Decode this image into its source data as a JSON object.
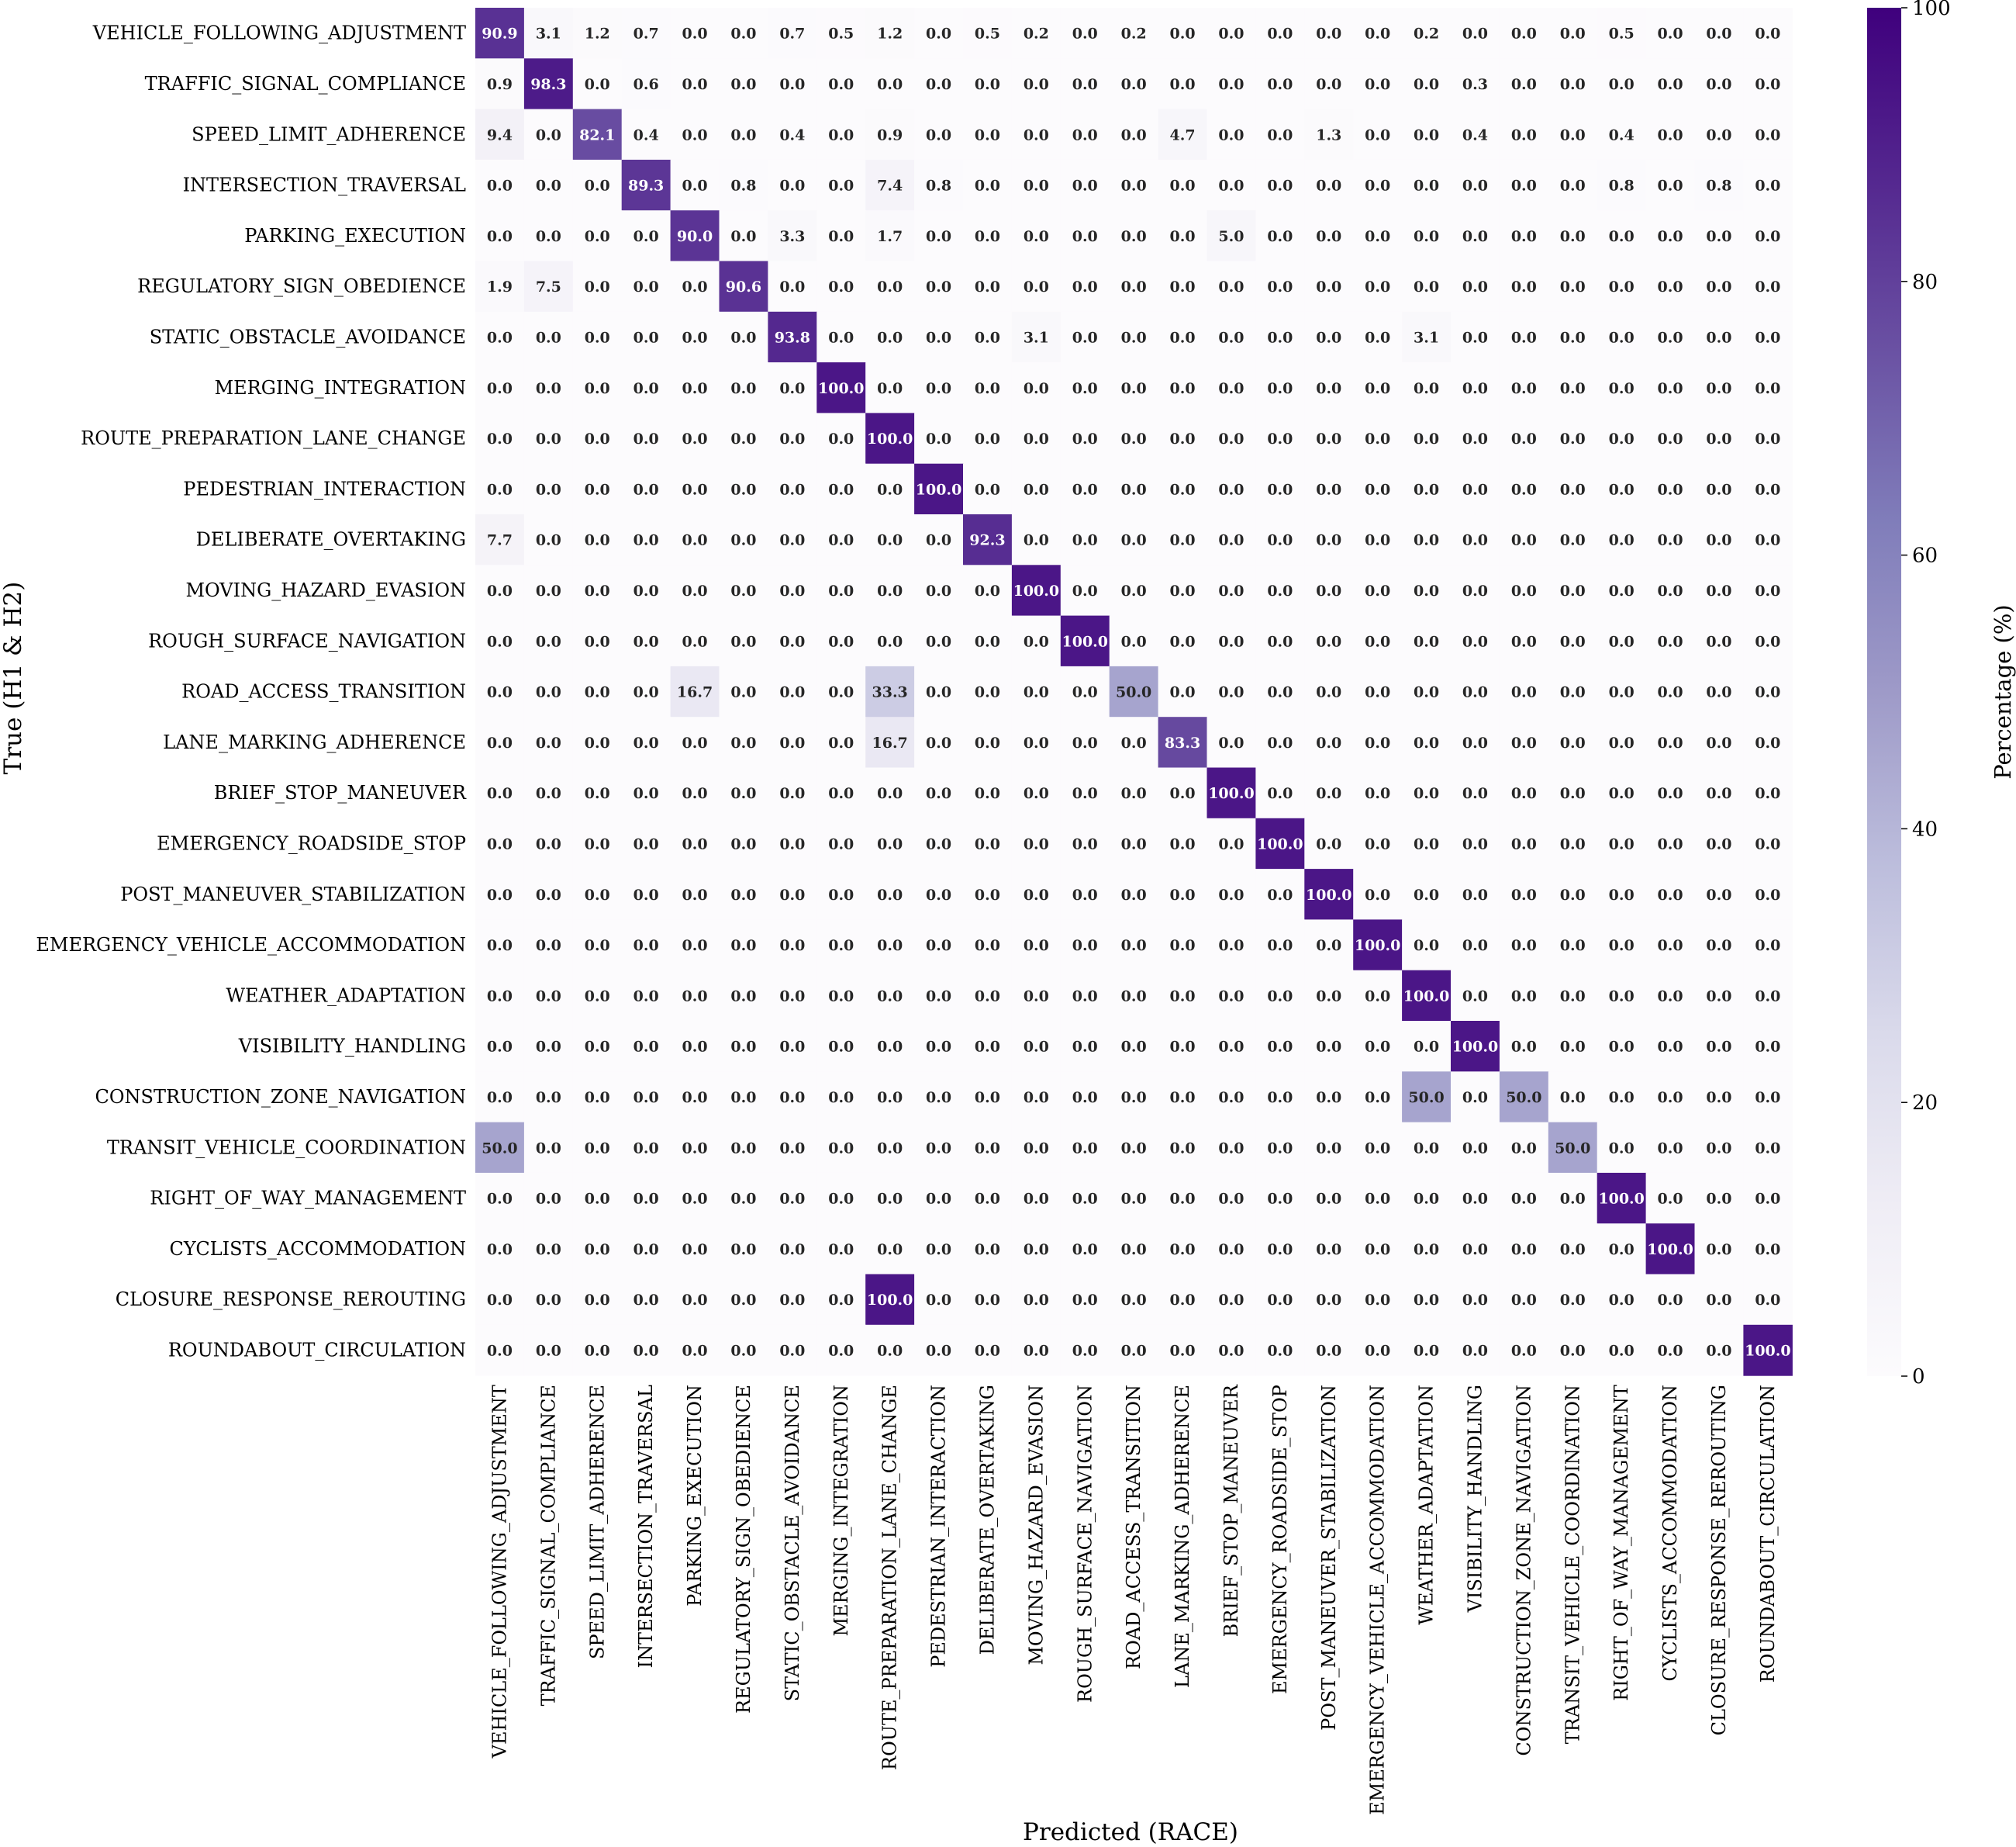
{
  "chart_data": {
    "type": "heatmap",
    "xlabel": "Predicted (RACE)",
    "ylabel": "True (H1 & H2)",
    "colorbar": {
      "label": "Percentage (%)",
      "range": [
        0,
        100
      ],
      "ticks": [
        "0",
        "20",
        "40",
        "60",
        "80",
        "100"
      ],
      "colors": [
        "#fcfbfd",
        "#bcbddc",
        "#54278f"
      ]
    },
    "categories": [
      "VEHICLE_FOLLOWING_ADJUSTMENT",
      "TRAFFIC_SIGNAL_COMPLIANCE",
      "SPEED_LIMIT_ADHERENCE",
      "INTERSECTION_TRAVERSAL",
      "PARKING_EXECUTION",
      "REGULATORY_SIGN_OBEDIENCE",
      "STATIC_OBSTACLE_AVOIDANCE",
      "MERGING_INTEGRATION",
      "ROUTE_PREPARATION_LANE_CHANGE",
      "PEDESTRIAN_INTERACTION",
      "DELIBERATE_OVERTAKING",
      "MOVING_HAZARD_EVASION",
      "ROUGH_SURFACE_NAVIGATION",
      "ROAD_ACCESS_TRANSITION",
      "LANE_MARKING_ADHERENCE",
      "BRIEF_STOP_MANEUVER",
      "EMERGENCY_ROADSIDE_STOP",
      "POST_MANEUVER_STABILIZATION",
      "EMERGENCY_VEHICLE_ACCOMMODATION",
      "WEATHER_ADAPTATION",
      "VISIBILITY_HANDLING",
      "CONSTRUCTION_ZONE_NAVIGATION",
      "TRANSIT_VEHICLE_COORDINATION",
      "RIGHT_OF_WAY_MANAGEMENT",
      "CYCLISTS_ACCOMMODATION",
      "CLOSURE_RESPONSE_REROUTING",
      "ROUNDABOUT_CIRCULATION"
    ],
    "values": [
      [
        90.9,
        3.1,
        1.2,
        0.7,
        0.0,
        0.0,
        0.7,
        0.5,
        1.2,
        0.0,
        0.5,
        0.2,
        0.0,
        0.2,
        0.0,
        0.0,
        0.0,
        0.0,
        0.0,
        0.2,
        0.0,
        0.0,
        0.0,
        0.5,
        0.0,
        0.0,
        0.0
      ],
      [
        0.9,
        98.3,
        0.0,
        0.6,
        0.0,
        0.0,
        0.0,
        0.0,
        0.0,
        0.0,
        0.0,
        0.0,
        0.0,
        0.0,
        0.0,
        0.0,
        0.0,
        0.0,
        0.0,
        0.0,
        0.3,
        0.0,
        0.0,
        0.0,
        0.0,
        0.0,
        0.0
      ],
      [
        9.4,
        0.0,
        82.1,
        0.4,
        0.0,
        0.0,
        0.4,
        0.0,
        0.9,
        0.0,
        0.0,
        0.0,
        0.0,
        0.0,
        4.7,
        0.0,
        0.0,
        1.3,
        0.0,
        0.0,
        0.4,
        0.0,
        0.0,
        0.4,
        0.0,
        0.0,
        0.0
      ],
      [
        0.0,
        0.0,
        0.0,
        89.3,
        0.0,
        0.8,
        0.0,
        0.0,
        7.4,
        0.8,
        0.0,
        0.0,
        0.0,
        0.0,
        0.0,
        0.0,
        0.0,
        0.0,
        0.0,
        0.0,
        0.0,
        0.0,
        0.0,
        0.8,
        0.0,
        0.8,
        0.0
      ],
      [
        0.0,
        0.0,
        0.0,
        0.0,
        90.0,
        0.0,
        3.3,
        0.0,
        1.7,
        0.0,
        0.0,
        0.0,
        0.0,
        0.0,
        0.0,
        5.0,
        0.0,
        0.0,
        0.0,
        0.0,
        0.0,
        0.0,
        0.0,
        0.0,
        0.0,
        0.0,
        0.0
      ],
      [
        1.9,
        7.5,
        0.0,
        0.0,
        0.0,
        90.6,
        0.0,
        0.0,
        0.0,
        0.0,
        0.0,
        0.0,
        0.0,
        0.0,
        0.0,
        0.0,
        0.0,
        0.0,
        0.0,
        0.0,
        0.0,
        0.0,
        0.0,
        0.0,
        0.0,
        0.0,
        0.0
      ],
      [
        0.0,
        0.0,
        0.0,
        0.0,
        0.0,
        0.0,
        93.8,
        0.0,
        0.0,
        0.0,
        0.0,
        3.1,
        0.0,
        0.0,
        0.0,
        0.0,
        0.0,
        0.0,
        0.0,
        3.1,
        0.0,
        0.0,
        0.0,
        0.0,
        0.0,
        0.0,
        0.0
      ],
      [
        0.0,
        0.0,
        0.0,
        0.0,
        0.0,
        0.0,
        0.0,
        100.0,
        0.0,
        0.0,
        0.0,
        0.0,
        0.0,
        0.0,
        0.0,
        0.0,
        0.0,
        0.0,
        0.0,
        0.0,
        0.0,
        0.0,
        0.0,
        0.0,
        0.0,
        0.0,
        0.0
      ],
      [
        0.0,
        0.0,
        0.0,
        0.0,
        0.0,
        0.0,
        0.0,
        0.0,
        100.0,
        0.0,
        0.0,
        0.0,
        0.0,
        0.0,
        0.0,
        0.0,
        0.0,
        0.0,
        0.0,
        0.0,
        0.0,
        0.0,
        0.0,
        0.0,
        0.0,
        0.0,
        0.0
      ],
      [
        0.0,
        0.0,
        0.0,
        0.0,
        0.0,
        0.0,
        0.0,
        0.0,
        0.0,
        100.0,
        0.0,
        0.0,
        0.0,
        0.0,
        0.0,
        0.0,
        0.0,
        0.0,
        0.0,
        0.0,
        0.0,
        0.0,
        0.0,
        0.0,
        0.0,
        0.0,
        0.0
      ],
      [
        7.7,
        0.0,
        0.0,
        0.0,
        0.0,
        0.0,
        0.0,
        0.0,
        0.0,
        0.0,
        92.3,
        0.0,
        0.0,
        0.0,
        0.0,
        0.0,
        0.0,
        0.0,
        0.0,
        0.0,
        0.0,
        0.0,
        0.0,
        0.0,
        0.0,
        0.0,
        0.0
      ],
      [
        0.0,
        0.0,
        0.0,
        0.0,
        0.0,
        0.0,
        0.0,
        0.0,
        0.0,
        0.0,
        0.0,
        100.0,
        0.0,
        0.0,
        0.0,
        0.0,
        0.0,
        0.0,
        0.0,
        0.0,
        0.0,
        0.0,
        0.0,
        0.0,
        0.0,
        0.0,
        0.0
      ],
      [
        0.0,
        0.0,
        0.0,
        0.0,
        0.0,
        0.0,
        0.0,
        0.0,
        0.0,
        0.0,
        0.0,
        0.0,
        100.0,
        0.0,
        0.0,
        0.0,
        0.0,
        0.0,
        0.0,
        0.0,
        0.0,
        0.0,
        0.0,
        0.0,
        0.0,
        0.0,
        0.0
      ],
      [
        0.0,
        0.0,
        0.0,
        0.0,
        16.7,
        0.0,
        0.0,
        0.0,
        33.3,
        0.0,
        0.0,
        0.0,
        0.0,
        50.0,
        0.0,
        0.0,
        0.0,
        0.0,
        0.0,
        0.0,
        0.0,
        0.0,
        0.0,
        0.0,
        0.0,
        0.0,
        0.0
      ],
      [
        0.0,
        0.0,
        0.0,
        0.0,
        0.0,
        0.0,
        0.0,
        0.0,
        16.7,
        0.0,
        0.0,
        0.0,
        0.0,
        0.0,
        83.3,
        0.0,
        0.0,
        0.0,
        0.0,
        0.0,
        0.0,
        0.0,
        0.0,
        0.0,
        0.0,
        0.0,
        0.0
      ],
      [
        0.0,
        0.0,
        0.0,
        0.0,
        0.0,
        0.0,
        0.0,
        0.0,
        0.0,
        0.0,
        0.0,
        0.0,
        0.0,
        0.0,
        0.0,
        100.0,
        0.0,
        0.0,
        0.0,
        0.0,
        0.0,
        0.0,
        0.0,
        0.0,
        0.0,
        0.0,
        0.0
      ],
      [
        0.0,
        0.0,
        0.0,
        0.0,
        0.0,
        0.0,
        0.0,
        0.0,
        0.0,
        0.0,
        0.0,
        0.0,
        0.0,
        0.0,
        0.0,
        0.0,
        100.0,
        0.0,
        0.0,
        0.0,
        0.0,
        0.0,
        0.0,
        0.0,
        0.0,
        0.0,
        0.0
      ],
      [
        0.0,
        0.0,
        0.0,
        0.0,
        0.0,
        0.0,
        0.0,
        0.0,
        0.0,
        0.0,
        0.0,
        0.0,
        0.0,
        0.0,
        0.0,
        0.0,
        0.0,
        100.0,
        0.0,
        0.0,
        0.0,
        0.0,
        0.0,
        0.0,
        0.0,
        0.0,
        0.0
      ],
      [
        0.0,
        0.0,
        0.0,
        0.0,
        0.0,
        0.0,
        0.0,
        0.0,
        0.0,
        0.0,
        0.0,
        0.0,
        0.0,
        0.0,
        0.0,
        0.0,
        0.0,
        0.0,
        100.0,
        0.0,
        0.0,
        0.0,
        0.0,
        0.0,
        0.0,
        0.0,
        0.0
      ],
      [
        0.0,
        0.0,
        0.0,
        0.0,
        0.0,
        0.0,
        0.0,
        0.0,
        0.0,
        0.0,
        0.0,
        0.0,
        0.0,
        0.0,
        0.0,
        0.0,
        0.0,
        0.0,
        0.0,
        100.0,
        0.0,
        0.0,
        0.0,
        0.0,
        0.0,
        0.0,
        0.0
      ],
      [
        0.0,
        0.0,
        0.0,
        0.0,
        0.0,
        0.0,
        0.0,
        0.0,
        0.0,
        0.0,
        0.0,
        0.0,
        0.0,
        0.0,
        0.0,
        0.0,
        0.0,
        0.0,
        0.0,
        0.0,
        100.0,
        0.0,
        0.0,
        0.0,
        0.0,
        0.0,
        0.0
      ],
      [
        0.0,
        0.0,
        0.0,
        0.0,
        0.0,
        0.0,
        0.0,
        0.0,
        0.0,
        0.0,
        0.0,
        0.0,
        0.0,
        0.0,
        0.0,
        0.0,
        0.0,
        0.0,
        0.0,
        50.0,
        0.0,
        50.0,
        0.0,
        0.0,
        0.0,
        0.0,
        0.0
      ],
      [
        50.0,
        0.0,
        0.0,
        0.0,
        0.0,
        0.0,
        0.0,
        0.0,
        0.0,
        0.0,
        0.0,
        0.0,
        0.0,
        0.0,
        0.0,
        0.0,
        0.0,
        0.0,
        0.0,
        0.0,
        0.0,
        0.0,
        50.0,
        0.0,
        0.0,
        0.0,
        0.0
      ],
      [
        0.0,
        0.0,
        0.0,
        0.0,
        0.0,
        0.0,
        0.0,
        0.0,
        0.0,
        0.0,
        0.0,
        0.0,
        0.0,
        0.0,
        0.0,
        0.0,
        0.0,
        0.0,
        0.0,
        0.0,
        0.0,
        0.0,
        0.0,
        100.0,
        0.0,
        0.0,
        0.0
      ],
      [
        0.0,
        0.0,
        0.0,
        0.0,
        0.0,
        0.0,
        0.0,
        0.0,
        0.0,
        0.0,
        0.0,
        0.0,
        0.0,
        0.0,
        0.0,
        0.0,
        0.0,
        0.0,
        0.0,
        0.0,
        0.0,
        0.0,
        0.0,
        0.0,
        100.0,
        0.0,
        0.0
      ],
      [
        0.0,
        0.0,
        0.0,
        0.0,
        0.0,
        0.0,
        0.0,
        0.0,
        100.0,
        0.0,
        0.0,
        0.0,
        0.0,
        0.0,
        0.0,
        0.0,
        0.0,
        0.0,
        0.0,
        0.0,
        0.0,
        0.0,
        0.0,
        0.0,
        0.0,
        0.0,
        0.0
      ],
      [
        0.0,
        0.0,
        0.0,
        0.0,
        0.0,
        0.0,
        0.0,
        0.0,
        0.0,
        0.0,
        0.0,
        0.0,
        0.0,
        0.0,
        0.0,
        0.0,
        0.0,
        0.0,
        0.0,
        0.0,
        0.0,
        0.0,
        0.0,
        0.0,
        0.0,
        0.0,
        100.0
      ]
    ]
  }
}
